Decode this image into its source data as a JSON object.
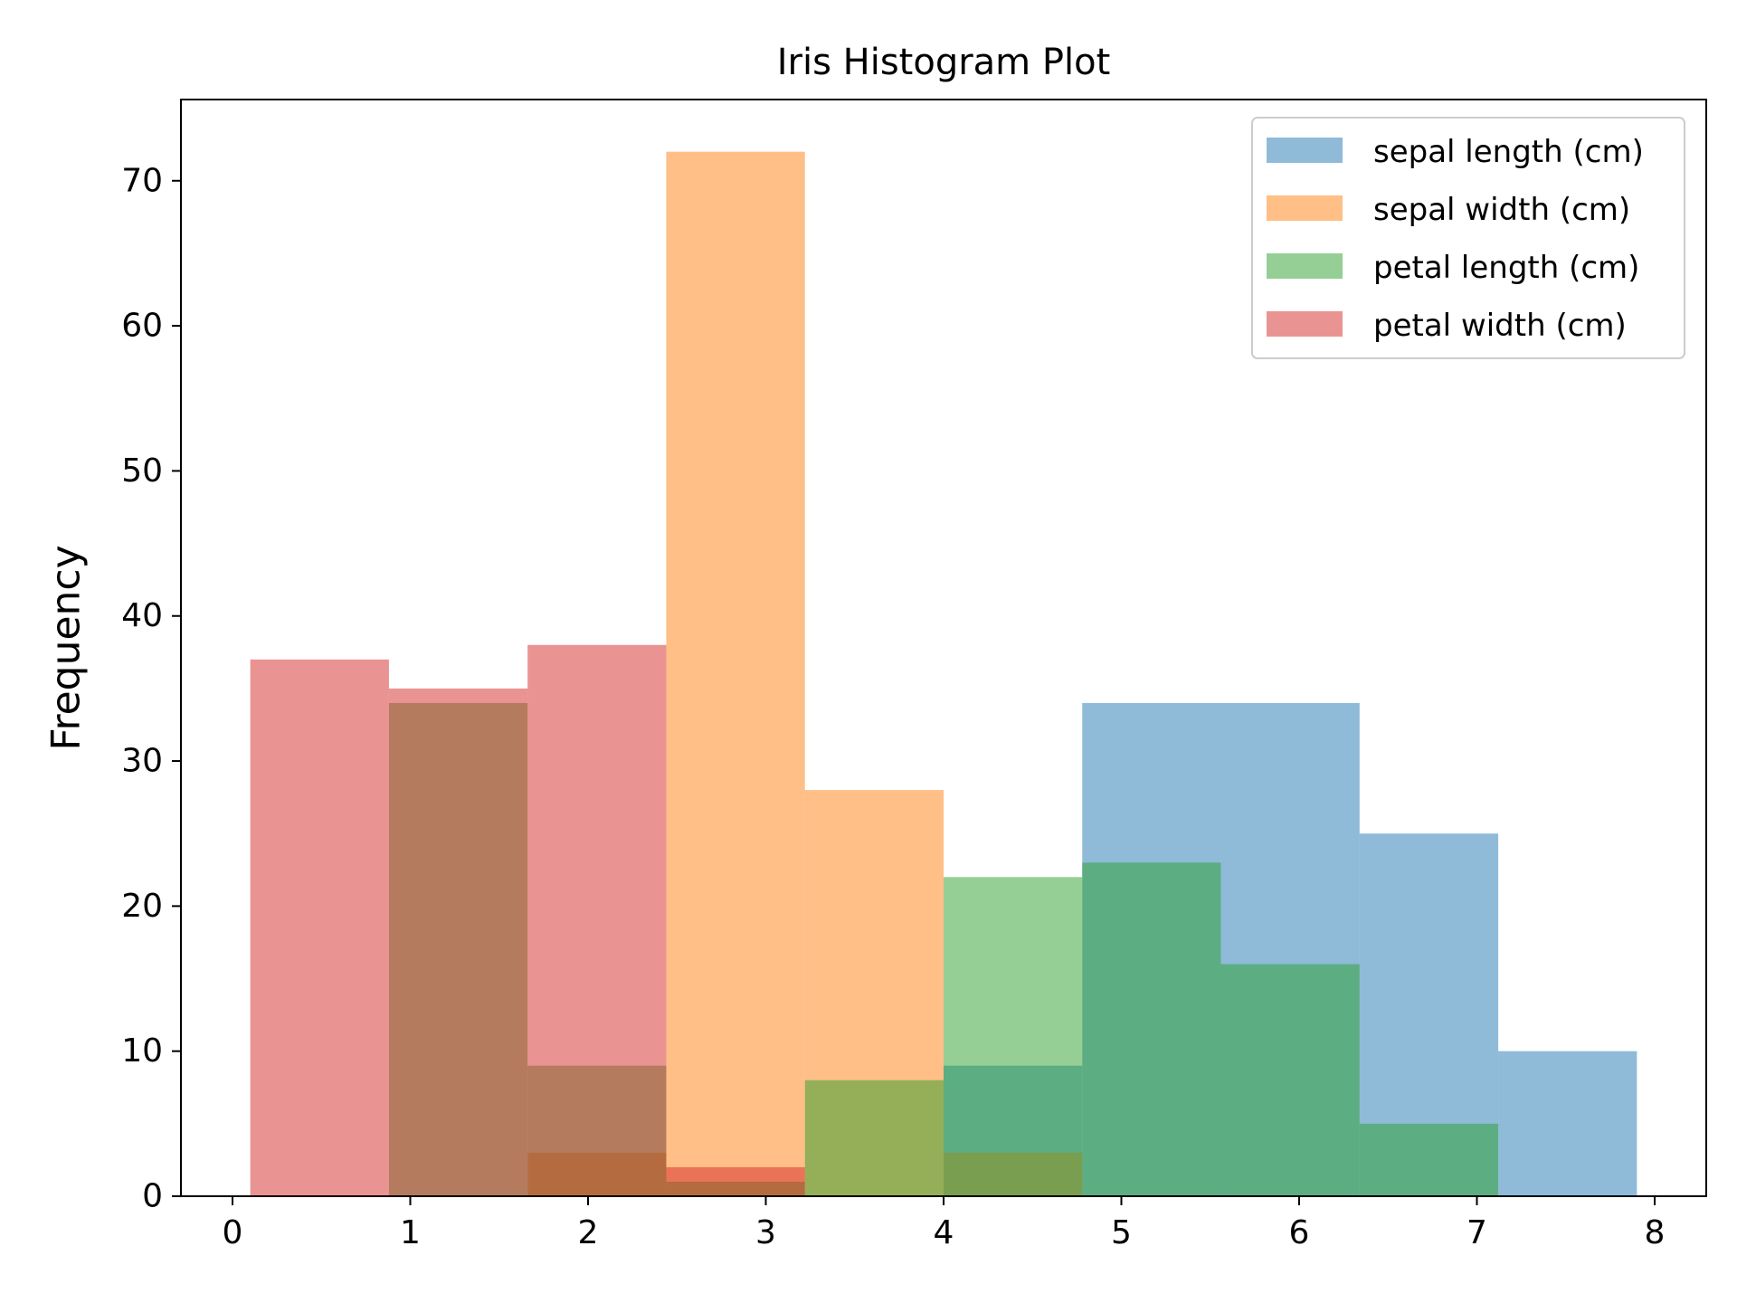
{
  "chart_data": {
    "type": "bar",
    "title": "Iris Histogram Plot",
    "xlabel": "",
    "ylabel": "Frequency",
    "xlim": [
      -0.29,
      8.29
    ],
    "ylim": [
      0,
      75.6
    ],
    "xticks": [
      0,
      1,
      2,
      3,
      4,
      5,
      6,
      7,
      8
    ],
    "yticks": [
      0,
      10,
      20,
      30,
      40,
      50,
      60,
      70
    ],
    "grid": false,
    "legend_position": "top-right",
    "bin_edges": [
      0.1,
      0.88,
      1.66,
      2.44,
      3.22,
      4.0,
      4.78,
      5.56,
      6.34,
      7.12,
      7.9
    ],
    "bar_alpha": 0.5,
    "series": [
      {
        "name": "sepal length (cm)",
        "color": "#1f77b4",
        "values": [
          0,
          0,
          0,
          0,
          0,
          9,
          34,
          34,
          25,
          10
        ]
      },
      {
        "name": "sepal width (cm)",
        "color": "#ff7f0e",
        "values": [
          0,
          0,
          3,
          72,
          28,
          3,
          0,
          0,
          0,
          0
        ]
      },
      {
        "name": "petal length (cm)",
        "color": "#2ca02c",
        "values": [
          0,
          34,
          9,
          1,
          8,
          22,
          23,
          16,
          5,
          0
        ]
      },
      {
        "name": "petal width (cm)",
        "color": "#d62728",
        "values": [
          37,
          35,
          38,
          2,
          0,
          0,
          0,
          0,
          0,
          0
        ]
      }
    ]
  }
}
